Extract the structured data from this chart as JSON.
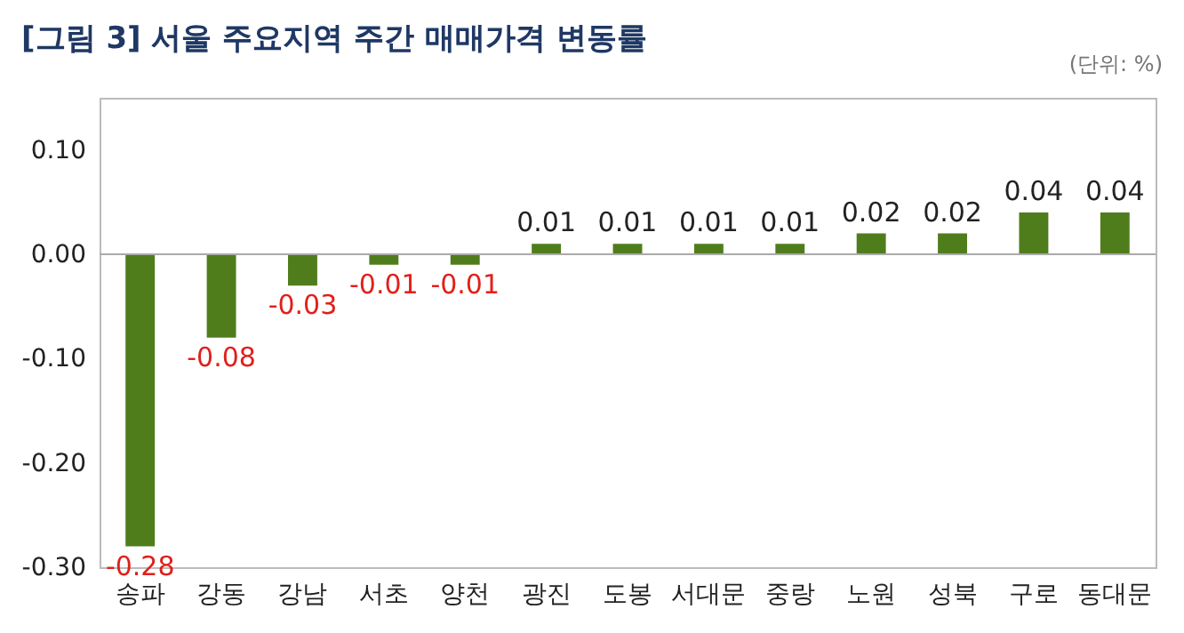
{
  "chart_data": {
    "type": "bar",
    "title": "[그림 3] 서울 주요지역 주간 매매가격 변동률",
    "annotations": [
      "(단위: %)"
    ],
    "categories": [
      "송파",
      "강동",
      "강남",
      "서초",
      "양천",
      "광진",
      "도봉",
      "서대문",
      "중랑",
      "노원",
      "성북",
      "구로",
      "동대문"
    ],
    "values": [
      -0.28,
      -0.08,
      -0.03,
      -0.01,
      -0.01,
      0.01,
      0.01,
      0.01,
      0.01,
      0.02,
      0.02,
      0.04,
      0.04
    ],
    "color": "#4f7d1c",
    "ylim": [
      -0.3,
      0.15
    ],
    "yticks": [
      {
        "value": -0.3,
        "label": "-0.30"
      },
      {
        "value": -0.2,
        "label": "-0.20"
      },
      {
        "value": -0.1,
        "label": "-0.10"
      },
      {
        "value": 0,
        "label": "0.00"
      },
      {
        "value": 0.1,
        "label": "0.10"
      }
    ],
    "data_labels": true
  }
}
